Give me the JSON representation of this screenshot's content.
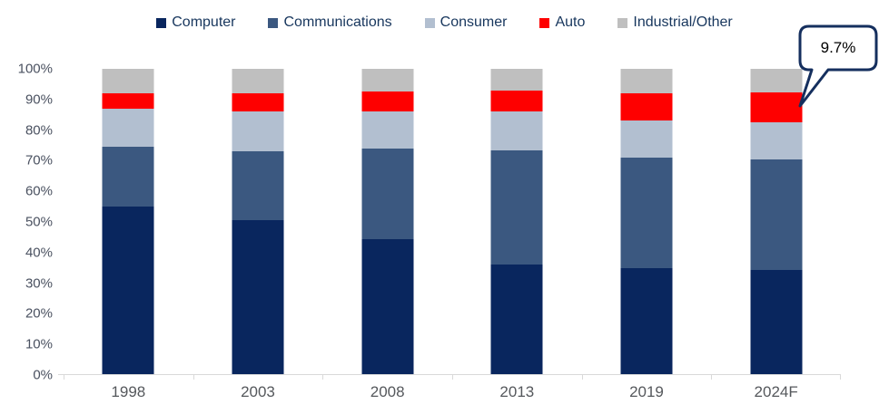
{
  "chart_data": {
    "type": "bar",
    "variant": "stacked-100-percent",
    "title": "",
    "xlabel": "",
    "ylabel": "",
    "categories": [
      "1998",
      "2003",
      "2008",
      "2013",
      "2019",
      "2024F"
    ],
    "series": [
      {
        "name": "Computer",
        "color": "#09265e",
        "values": [
          55.0,
          50.5,
          44.5,
          36.0,
          35.0,
          34.3
        ]
      },
      {
        "name": "Communications",
        "color": "#3b5880",
        "values": [
          19.5,
          22.5,
          29.5,
          37.5,
          36.0,
          36.0
        ]
      },
      {
        "name": "Consumer",
        "color": "#b2bfd0",
        "values": [
          12.5,
          13.0,
          12.0,
          12.5,
          12.0,
          12.3
        ]
      },
      {
        "name": "Auto",
        "color": "#fe0000",
        "values": [
          5.0,
          6.0,
          6.5,
          7.0,
          9.0,
          9.7
        ]
      },
      {
        "name": "Industrial/Other",
        "color": "#bfbfbf",
        "values": [
          8.0,
          8.0,
          7.5,
          7.0,
          8.0,
          7.7
        ]
      }
    ],
    "y_ticks": [
      "100%",
      "90%",
      "80%",
      "70%",
      "60%",
      "50%",
      "40%",
      "30%",
      "20%",
      "10%",
      "0%"
    ],
    "ylim": [
      0,
      100
    ],
    "gridlines": false,
    "legend_position": "top"
  },
  "annotation": {
    "text": "9.7%",
    "series": "Auto",
    "category": "2024F"
  },
  "colors": {
    "background": "#ffffff",
    "axis_line": "#d9d9d9",
    "y_label": "#4a5160",
    "x_label": "#55585c",
    "legend_text": "#17365d",
    "callout_border": "#152f5e",
    "callout_fill": "#ffffff"
  }
}
